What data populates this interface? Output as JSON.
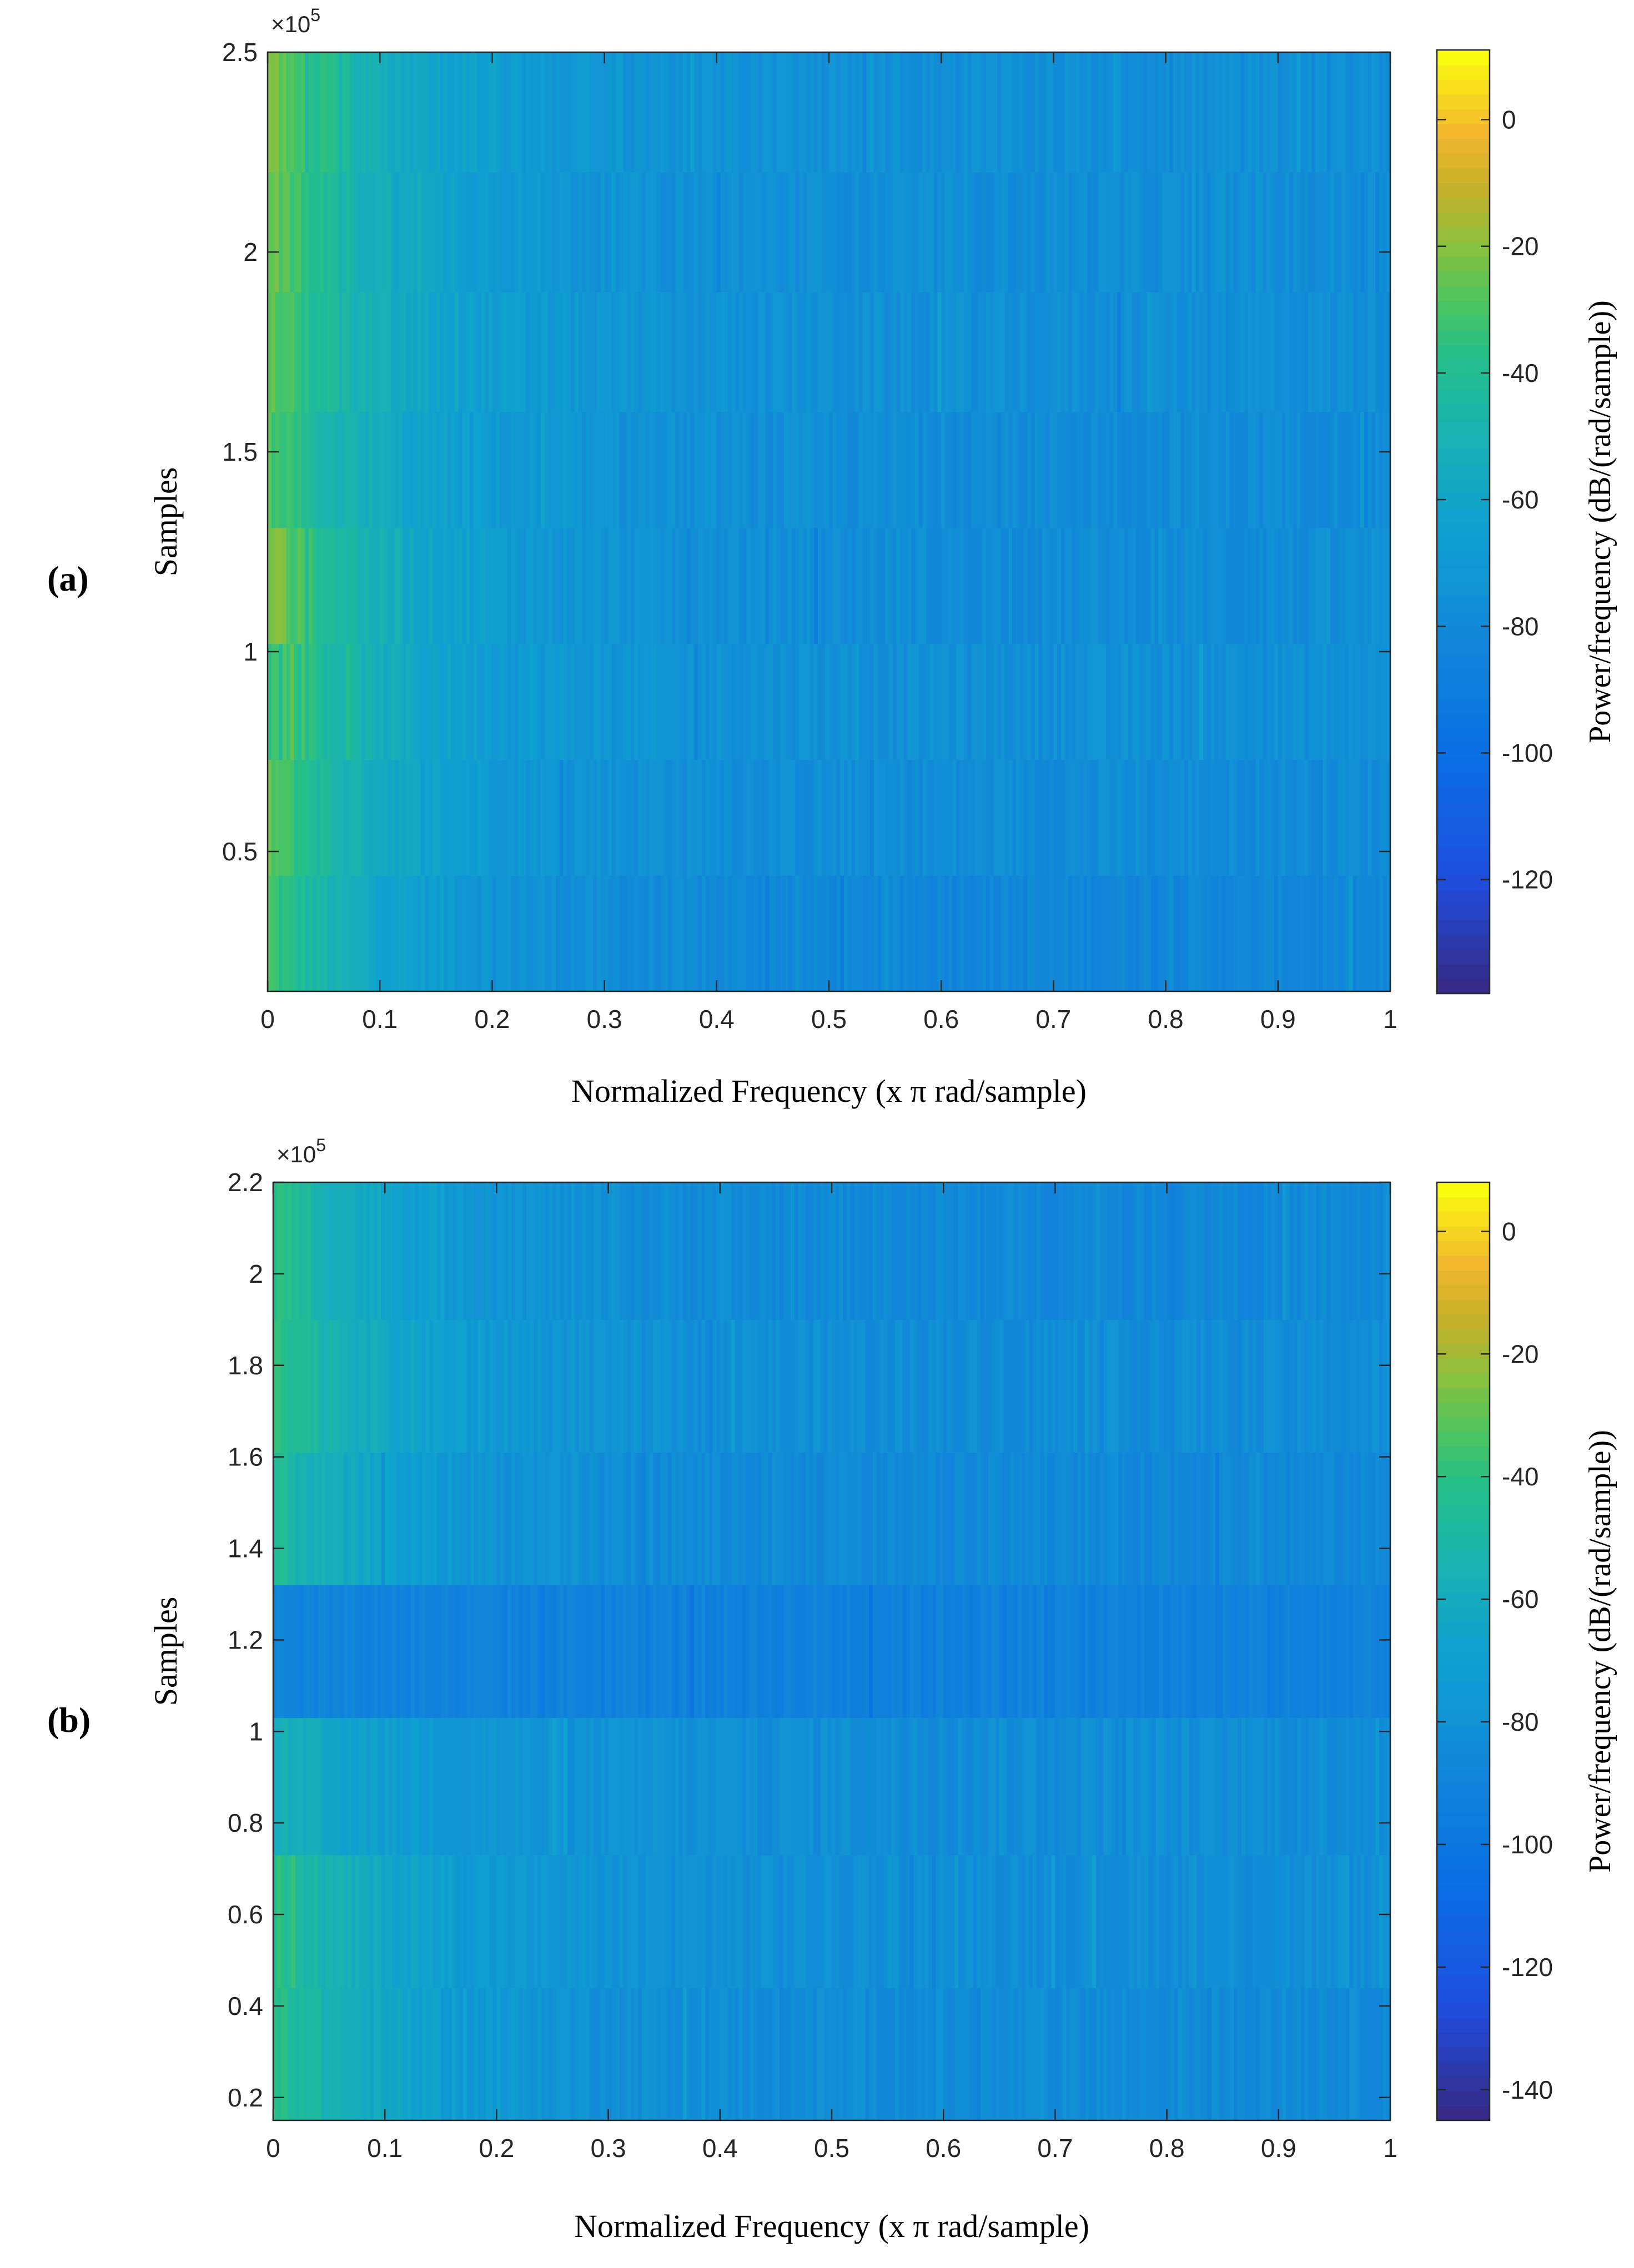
{
  "chart_data": [
    {
      "type": "heatmap",
      "panel_label": "(a)",
      "panel_letter": "a",
      "xlabel": "Normalized Frequency (x π rad/sample)",
      "ylabel": "Samples",
      "colorbar_label": "Power/frequency (dB/(rad/sample))",
      "y_exponent_label": "×10",
      "y_exponent_power": "5",
      "xlim": [
        0,
        1
      ],
      "ylim": [
        0.15,
        2.5
      ],
      "clim": [
        -138,
        11
      ],
      "x_ticks": [
        0,
        0.1,
        0.2,
        0.3,
        0.4,
        0.5,
        0.6,
        0.7,
        0.8,
        0.9,
        1
      ],
      "x_tick_labels": [
        "0",
        "0.1",
        "0.2",
        "0.3",
        "0.4",
        "0.5",
        "0.6",
        "0.7",
        "0.8",
        "0.9",
        "1"
      ],
      "y_ticks": [
        0.5,
        1,
        1.5,
        2,
        2.5
      ],
      "y_tick_labels": [
        "0.5",
        "1",
        "1.5",
        "2",
        "2.5"
      ],
      "colorbar_ticks": [
        0,
        -20,
        -40,
        -60,
        -80,
        -100,
        -120
      ],
      "colorbar_tick_labels": [
        "0",
        "-20",
        "-40",
        "-60",
        "-80",
        "-100",
        "-120"
      ],
      "time_bands": [
        {
          "y0": 0.15,
          "y1": 0.44,
          "low_freq_db": -30,
          "high_freq_db": -82
        },
        {
          "y0": 0.44,
          "y1": 0.73,
          "low_freq_db": -25,
          "high_freq_db": -78
        },
        {
          "y0": 0.73,
          "y1": 1.02,
          "low_freq_db": -24,
          "high_freq_db": -76
        },
        {
          "y0": 1.02,
          "y1": 1.31,
          "low_freq_db": -18,
          "high_freq_db": -78
        },
        {
          "y0": 1.31,
          "y1": 1.6,
          "low_freq_db": -28,
          "high_freq_db": -78
        },
        {
          "y0": 1.6,
          "y1": 1.9,
          "low_freq_db": -24,
          "high_freq_db": -76
        },
        {
          "y0": 1.9,
          "y1": 2.2,
          "low_freq_db": -22,
          "high_freq_db": -77
        },
        {
          "y0": 2.2,
          "y1": 2.5,
          "low_freq_db": -20,
          "high_freq_db": -76
        }
      ]
    },
    {
      "type": "heatmap",
      "panel_label": "(b)",
      "panel_letter": "b",
      "xlabel": "Normalized Frequency (x π rad/sample)",
      "ylabel": "Samples",
      "colorbar_label": "Power/frequency (dB/(rad/sample))",
      "y_exponent_label": "×10",
      "y_exponent_power": "5",
      "xlim": [
        0,
        1
      ],
      "ylim": [
        0.15,
        2.2
      ],
      "clim": [
        -145,
        8
      ],
      "x_ticks": [
        0,
        0.1,
        0.2,
        0.3,
        0.4,
        0.5,
        0.6,
        0.7,
        0.8,
        0.9,
        1
      ],
      "x_tick_labels": [
        "0",
        "0.1",
        "0.2",
        "0.3",
        "0.4",
        "0.5",
        "0.6",
        "0.7",
        "0.8",
        "0.9",
        "1"
      ],
      "y_ticks": [
        0.2,
        0.4,
        0.6,
        0.8,
        1,
        1.2,
        1.4,
        1.6,
        1.8,
        2,
        2.2
      ],
      "y_tick_labels": [
        "0.2",
        "0.4",
        "0.6",
        "0.8",
        "1",
        "1.2",
        "1.4",
        "1.6",
        "1.8",
        "2",
        "2.2"
      ],
      "colorbar_ticks": [
        0,
        -20,
        -40,
        -60,
        -80,
        -100,
        -120,
        -140
      ],
      "colorbar_tick_labels": [
        "0",
        "-20",
        "-40",
        "-60",
        "-80",
        "-100",
        "-120",
        "-140"
      ],
      "time_bands": [
        {
          "y0": 0.15,
          "y1": 0.44,
          "low_freq_db": -38,
          "high_freq_db": -84
        },
        {
          "y0": 0.44,
          "y1": 0.73,
          "low_freq_db": -40,
          "high_freq_db": -82
        },
        {
          "y0": 0.73,
          "y1": 1.03,
          "low_freq_db": -55,
          "high_freq_db": -82
        },
        {
          "y0": 1.03,
          "y1": 1.32,
          "low_freq_db": -88,
          "high_freq_db": -92
        },
        {
          "y0": 1.32,
          "y1": 1.61,
          "low_freq_db": -45,
          "high_freq_db": -86
        },
        {
          "y0": 1.61,
          "y1": 1.9,
          "low_freq_db": -36,
          "high_freq_db": -83
        },
        {
          "y0": 1.9,
          "y1": 2.2,
          "low_freq_db": -38,
          "high_freq_db": -86
        }
      ]
    }
  ]
}
